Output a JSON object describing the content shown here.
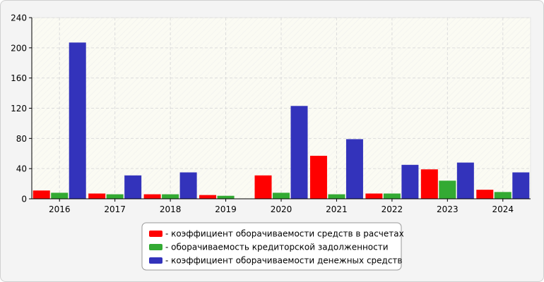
{
  "chart_data": {
    "type": "bar",
    "categories": [
      "2016",
      "2017",
      "2018",
      "2019",
      "2020",
      "2021",
      "2022",
      "2023",
      "2024"
    ],
    "series": [
      {
        "name": "- коэффициент оборачиваемости средств в расчетах",
        "color": "#ff0000",
        "values": [
          11,
          7,
          6,
          5,
          31,
          57,
          7,
          39,
          12
        ]
      },
      {
        "name": "- оборачиваемость кредиторской задолженности",
        "color": "#33aa33",
        "values": [
          8,
          6,
          6,
          4,
          8,
          6,
          7,
          24,
          9
        ]
      },
      {
        "name": "- коэффициент оборачиваемости денежных средств",
        "color": "#3333bb",
        "values": [
          207,
          31,
          35,
          0,
          123,
          79,
          45,
          48,
          35
        ]
      }
    ],
    "yticks": [
      "0",
      "40",
      "80",
      "120",
      "160",
      "200",
      "240"
    ],
    "ylim": [
      0,
      240
    ],
    "grid": true,
    "legend_position": "bottom-center",
    "title": "",
    "xlabel": "",
    "ylabel": ""
  }
}
